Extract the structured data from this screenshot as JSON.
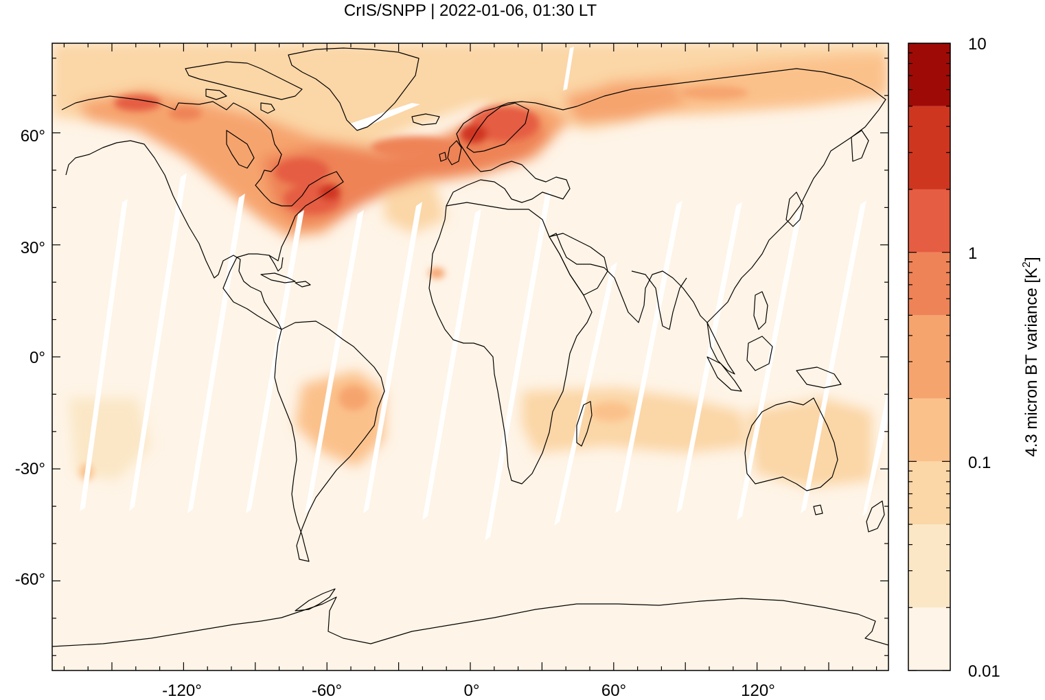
{
  "title": "CrIS/SNPP | 2022-01-06, 01:30 LT",
  "map": {
    "projection": "equirectangular",
    "lon_range": [
      -175,
      175
    ],
    "lat_range": [
      -84,
      84
    ],
    "y_ticks": [
      {
        "value": 60,
        "label": "60°"
      },
      {
        "value": 30,
        "label": "30°"
      },
      {
        "value": 0,
        "label": "0°"
      },
      {
        "value": -30,
        "label": "-30°"
      },
      {
        "value": -60,
        "label": "-60°"
      }
    ],
    "x_ticks": [
      {
        "value": -120,
        "label": "-120°"
      },
      {
        "value": -60,
        "label": "-60°"
      },
      {
        "value": 0,
        "label": "0°"
      },
      {
        "value": 60,
        "label": "60°"
      },
      {
        "value": 120,
        "label": "120°"
      }
    ],
    "background_color": "#fef4e7",
    "gap_color": "#ffffff",
    "coastline_color": "#000000"
  },
  "colorbar": {
    "label": "4.3 micron BT variance [K²]",
    "label_main": "4.3 micron BT variance [K",
    "label_sup": "2",
    "label_end": "]",
    "scale": "log",
    "range": [
      0.01,
      10
    ],
    "tick_labels": [
      {
        "value": 10,
        "label": "10"
      },
      {
        "value": 1,
        "label": "1"
      },
      {
        "value": 0.1,
        "label": "0.1"
      },
      {
        "value": 0.01,
        "label": "0.01"
      }
    ],
    "levels": [
      {
        "from": 0.01,
        "to": 0.02,
        "color": "#fef4e7"
      },
      {
        "from": 0.02,
        "to": 0.05,
        "color": "#fbe7c6"
      },
      {
        "from": 0.05,
        "to": 0.1,
        "color": "#fbd6a6"
      },
      {
        "from": 0.1,
        "to": 0.2,
        "color": "#fbc18b"
      },
      {
        "from": 0.2,
        "to": 0.5,
        "color": "#f6a46e"
      },
      {
        "from": 0.5,
        "to": 1,
        "color": "#ee8357"
      },
      {
        "from": 1,
        "to": 2,
        "color": "#e55d42"
      },
      {
        "from": 2,
        "to": 5,
        "color": "#cf3620"
      },
      {
        "from": 5,
        "to": 10,
        "color": "#9e0b06"
      }
    ]
  }
}
